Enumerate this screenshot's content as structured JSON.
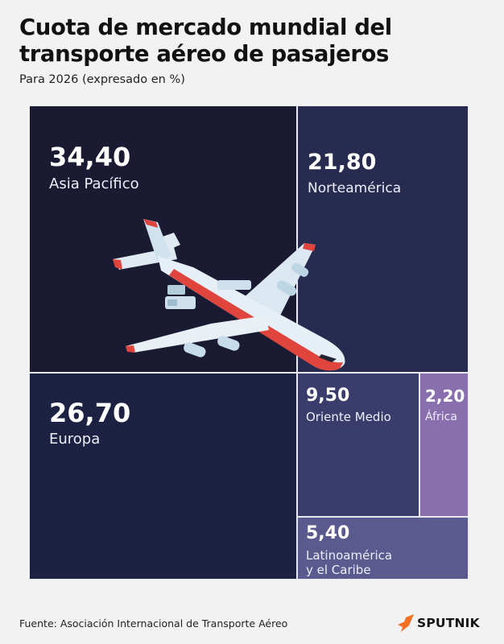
{
  "header": {
    "title": "Cuota de mercado mundial del transporte aéreo de pasajeros",
    "subtitle": "Para 2026 (expresado en %)"
  },
  "chart_data": {
    "type": "treemap",
    "title": "Cuota de mercado mundial del transporte aéreo de pasajeros",
    "subtitle": "Para 2026 (expresado en %)",
    "items": [
      {
        "label": "Asia Pacífico",
        "value": 34.4,
        "display": "34,40",
        "color": "#1a1a33"
      },
      {
        "label": "Europa",
        "value": 26.7,
        "display": "26,70",
        "color": "#1d2242"
      },
      {
        "label": "Norteamérica",
        "value": 21.8,
        "display": "21,80",
        "color": "#272b50"
      },
      {
        "label": "Oriente Medio",
        "value": 9.5,
        "display": "9,50",
        "color": "#3a3d6c"
      },
      {
        "label": "Latinoamérica\ny el Caribe",
        "value": 5.4,
        "display": "5,40",
        "color": "#5a5a8e"
      },
      {
        "label": "África",
        "value": 2.2,
        "display": "2,20",
        "color": "#8a6fae"
      }
    ]
  },
  "footer": {
    "source": "Fuente: Asociación Internacional de Transporte Aéreo",
    "brand": "SPUTNIK",
    "brand_color": "#f36f21"
  },
  "illustration": {
    "icon": "airplane-icon"
  }
}
